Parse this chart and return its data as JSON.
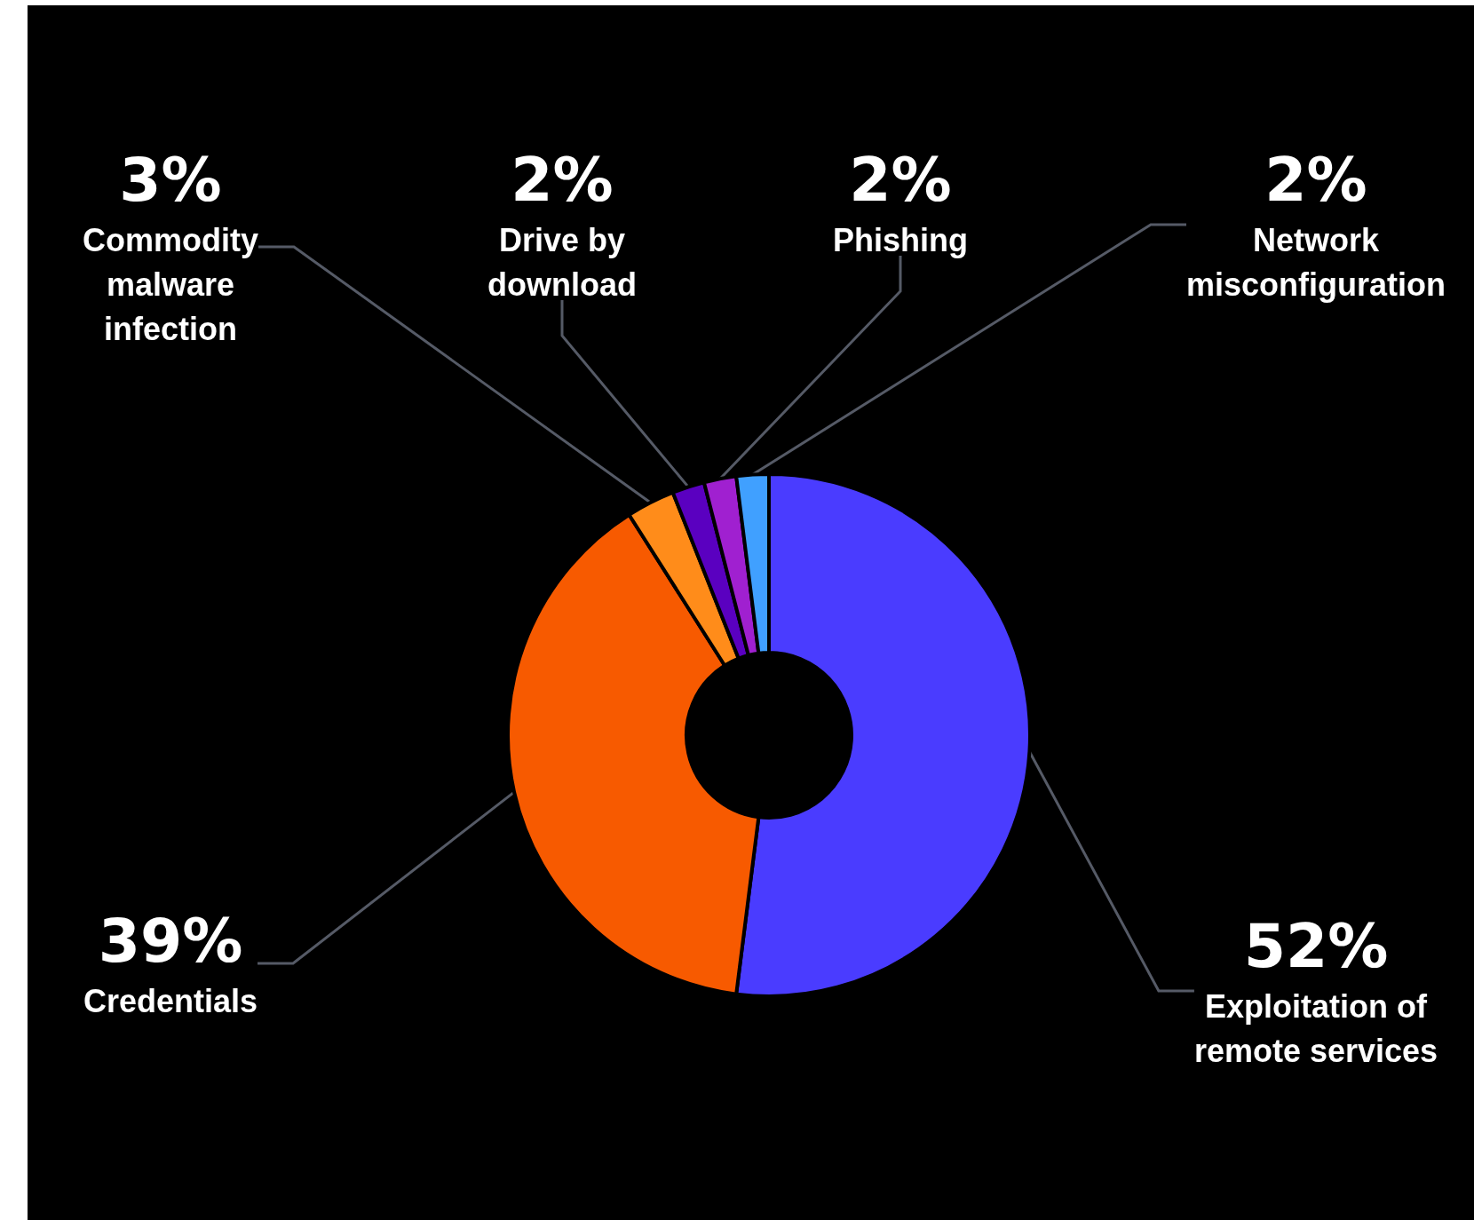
{
  "chart_data": {
    "type": "donut",
    "categories": [
      "Exploitation of\nremote services",
      "Credentials",
      "Commodity\nmalware\ninfection",
      "Drive by\ndownload",
      "Phishing",
      "Network\nmisconfiguration"
    ],
    "values": [
      52,
      39,
      3,
      2,
      2,
      2
    ],
    "colors": [
      "#4a3cff",
      "#f75a00",
      "#ff8c1a",
      "#5a00c0",
      "#a020d0",
      "#40a0ff"
    ],
    "value_labels": [
      "52%",
      "39%",
      "3%",
      "2%",
      "2%",
      "2%"
    ],
    "legend": false
  }
}
